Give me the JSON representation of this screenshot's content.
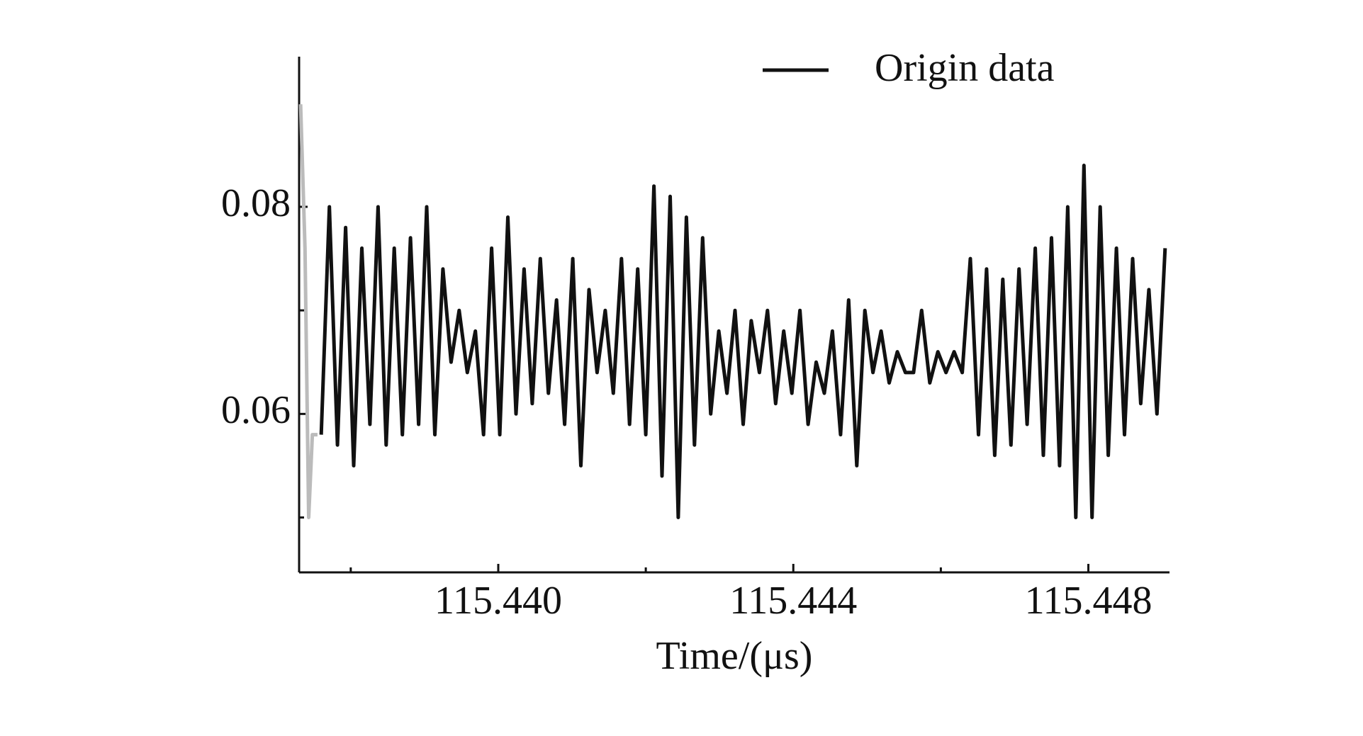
{
  "chart_data": {
    "type": "line",
    "x_label": "Time/(μs)",
    "xlim": [
      115.4373,
      115.4491
    ],
    "ylim": [
      0.0447,
      0.0945
    ],
    "xticks": [
      {
        "value": 115.44,
        "label": "115.440"
      },
      {
        "value": 115.444,
        "label": "115.444"
      },
      {
        "value": 115.448,
        "label": "115.448"
      }
    ],
    "xminorticks": [
      115.438,
      115.442,
      115.446
    ],
    "yticks": [
      0.06,
      0.08
    ],
    "yminorticks": [
      0.05,
      0.07
    ],
    "legend_position": "top-right",
    "series": [
      {
        "color": "#bbbbbb",
        "x": [
          115.43732,
          115.43738,
          115.43743,
          115.43748,
          115.43755
        ],
        "values": [
          0.0899,
          0.076,
          0.05,
          0.058,
          0.058
        ]
      },
      {
        "name": "Origin data",
        "color": "#111111",
        "x": [
          115.4376,
          115.43771,
          115.43782,
          115.43793,
          115.43804,
          115.43815,
          115.43826,
          115.43837,
          115.43848,
          115.43859,
          115.4387,
          115.43881,
          115.43892,
          115.43903,
          115.43914,
          115.43925,
          115.43936,
          115.43947,
          115.43958,
          115.43969,
          115.4398,
          115.43991,
          115.44002,
          115.44013,
          115.44024,
          115.44035,
          115.44046,
          115.44057,
          115.44068,
          115.44079,
          115.4409,
          115.44101,
          115.44112,
          115.44123,
          115.44134,
          115.44145,
          115.44156,
          115.44167,
          115.44178,
          115.44189,
          115.442,
          115.44211,
          115.44222,
          115.44233,
          115.44244,
          115.44255,
          115.44266,
          115.44277,
          115.44288,
          115.44299,
          115.4431,
          115.44321,
          115.44332,
          115.44343,
          115.44354,
          115.44365,
          115.44376,
          115.44387,
          115.44398,
          115.44409,
          115.4442,
          115.44431,
          115.44442,
          115.44453,
          115.44464,
          115.44475,
          115.44486,
          115.44497,
          115.44508,
          115.44519,
          115.4453,
          115.44541,
          115.44552,
          115.44563,
          115.44574,
          115.44585,
          115.44596,
          115.44607,
          115.44618,
          115.44629,
          115.4464,
          115.44651,
          115.44662,
          115.44673,
          115.44684,
          115.44695,
          115.44706,
          115.44717,
          115.44728,
          115.44739,
          115.4475,
          115.44761,
          115.44772,
          115.44783,
          115.44794,
          115.44805,
          115.44816,
          115.44827,
          115.44838,
          115.44849,
          115.4486,
          115.44871,
          115.44882,
          115.44893,
          115.44904
        ],
        "values": [
          0.058,
          0.08,
          0.057,
          0.078,
          0.055,
          0.076,
          0.059,
          0.08,
          0.057,
          0.076,
          0.058,
          0.077,
          0.059,
          0.08,
          0.058,
          0.074,
          0.065,
          0.07,
          0.064,
          0.068,
          0.058,
          0.076,
          0.058,
          0.079,
          0.06,
          0.074,
          0.061,
          0.075,
          0.062,
          0.071,
          0.059,
          0.075,
          0.055,
          0.072,
          0.064,
          0.07,
          0.062,
          0.075,
          0.059,
          0.074,
          0.058,
          0.082,
          0.054,
          0.081,
          0.05,
          0.079,
          0.057,
          0.077,
          0.06,
          0.068,
          0.062,
          0.07,
          0.059,
          0.069,
          0.064,
          0.07,
          0.061,
          0.068,
          0.062,
          0.07,
          0.059,
          0.065,
          0.062,
          0.068,
          0.058,
          0.071,
          0.055,
          0.07,
          0.064,
          0.068,
          0.063,
          0.066,
          0.064,
          0.064,
          0.07,
          0.063,
          0.066,
          0.064,
          0.066,
          0.064,
          0.075,
          0.058,
          0.074,
          0.056,
          0.073,
          0.057,
          0.074,
          0.059,
          0.076,
          0.056,
          0.077,
          0.055,
          0.08,
          0.05,
          0.084,
          0.05,
          0.08,
          0.056,
          0.076,
          0.058,
          0.075,
          0.061,
          0.072,
          0.06,
          0.076
        ]
      }
    ]
  }
}
